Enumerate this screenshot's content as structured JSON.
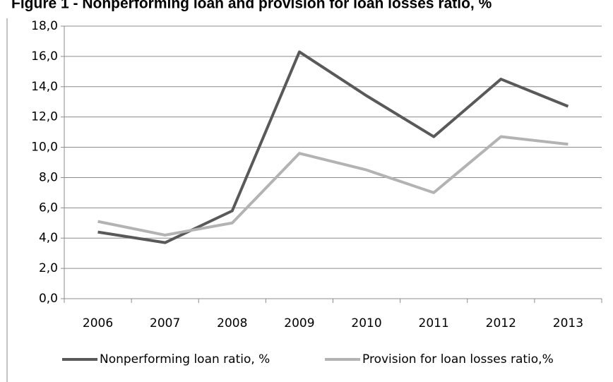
{
  "chart_data": {
    "type": "line",
    "title": "Figure 1 - Nonperforming loan and provision for loan losses ratio, %",
    "categories": [
      "2006",
      "2007",
      "2008",
      "2009",
      "2010",
      "2011",
      "2012",
      "2013"
    ],
    "series": [
      {
        "name": "Nonperforming loan ratio, %",
        "color": "#595959",
        "values": [
          4.4,
          3.7,
          5.8,
          16.3,
          13.4,
          10.7,
          14.5,
          12.7
        ]
      },
      {
        "name": "Provision for loan losses ratio,%",
        "color": "#b3b3b3",
        "values": [
          5.1,
          4.2,
          5.0,
          9.6,
          8.5,
          7.0,
          10.7,
          10.2
        ]
      }
    ],
    "ylim": [
      0,
      18
    ],
    "yticks": [
      {
        "value": 0,
        "label": "0,0"
      },
      {
        "value": 2,
        "label": "2,0"
      },
      {
        "value": 4,
        "label": "4,0"
      },
      {
        "value": 6,
        "label": "6,0"
      },
      {
        "value": 8,
        "label": "8,0"
      },
      {
        "value": 10,
        "label": "10,0"
      },
      {
        "value": 12,
        "label": "12,0"
      },
      {
        "value": 14,
        "label": "14,0"
      },
      {
        "value": 16,
        "label": "16,0"
      },
      {
        "value": 18,
        "label": "18,0"
      }
    ],
    "grid": true,
    "legend": "bottom"
  }
}
